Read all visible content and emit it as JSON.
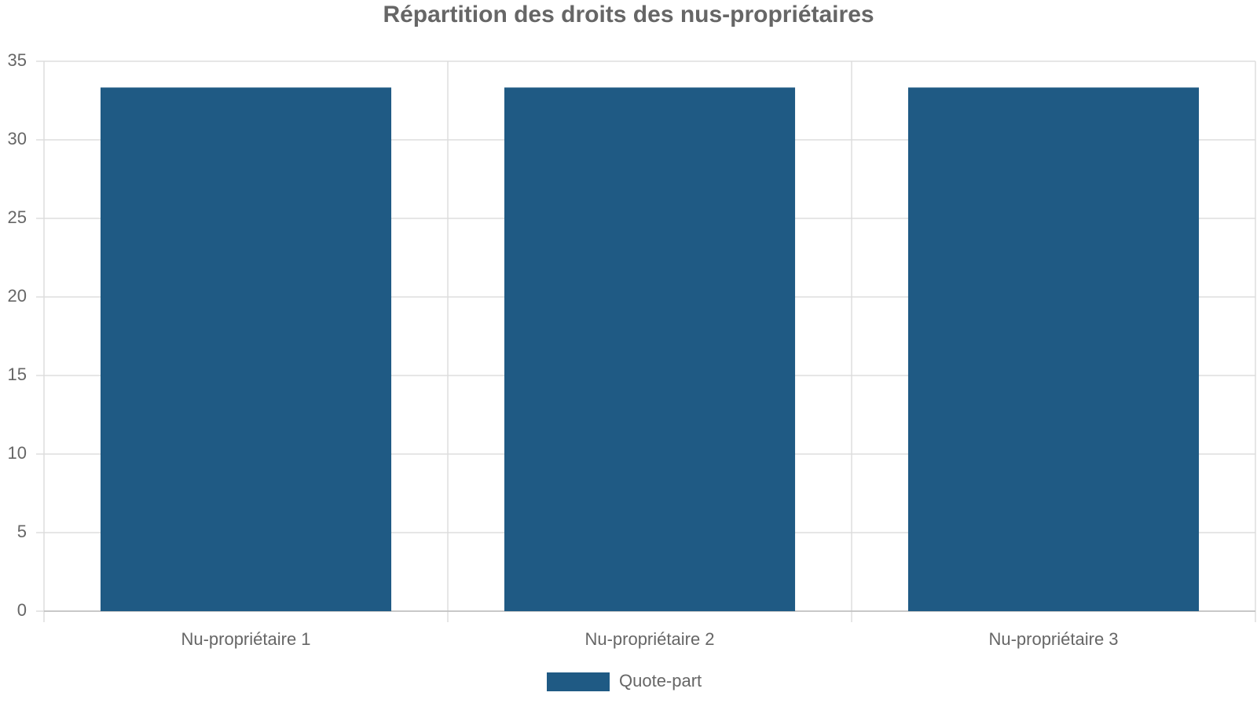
{
  "chart_data": {
    "type": "bar",
    "title": "Répartition des droits des nus-propriétaires",
    "categories": [
      "Nu-propriétaire 1",
      "Nu-propriétaire 2",
      "Nu-propriétaire 3"
    ],
    "series": [
      {
        "name": "Quote-part",
        "color": "#1f5a84",
        "values": [
          33.33,
          33.33,
          33.33
        ]
      }
    ],
    "ylim": [
      0,
      35
    ],
    "yticks": [
      0,
      5,
      10,
      15,
      20,
      25,
      30,
      35
    ],
    "grid": true,
    "legend": "bottom"
  }
}
